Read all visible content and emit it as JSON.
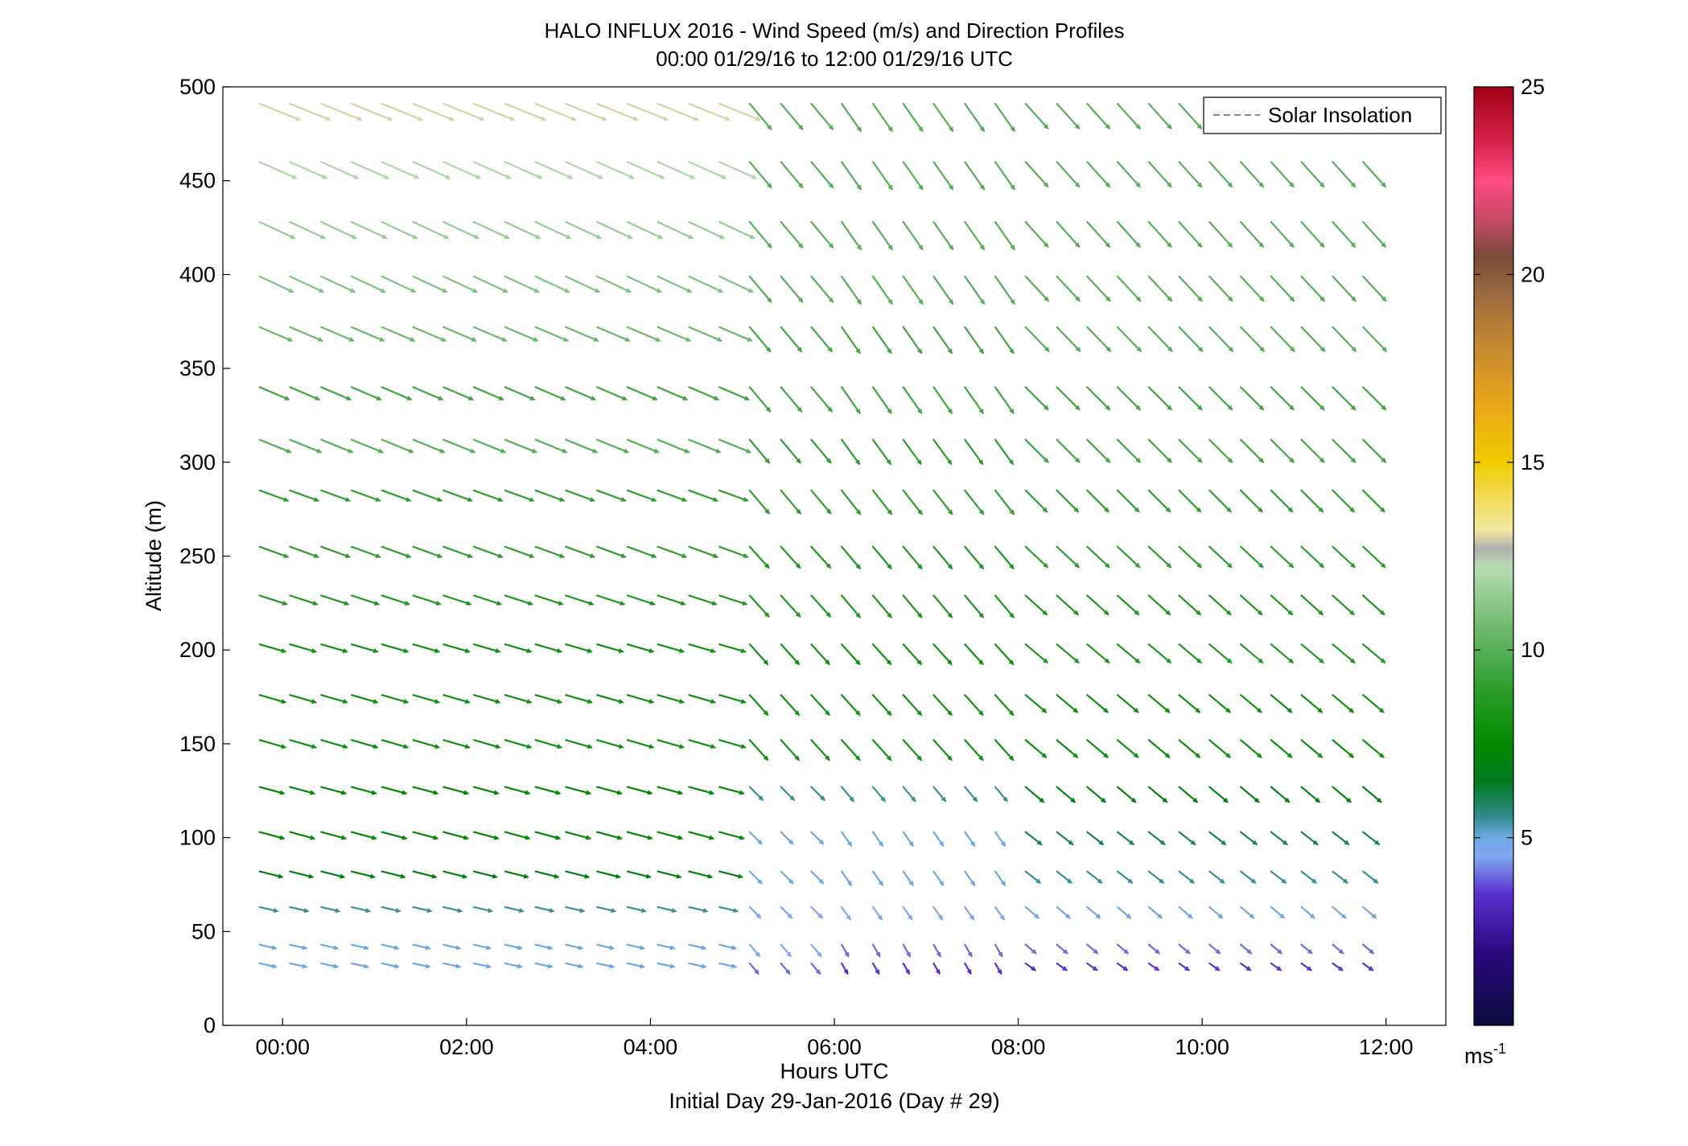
{
  "chart_data": {
    "type": "quiver",
    "title": "HALO INFLUX 2016 - Wind Speed (m/s) and Direction Profiles",
    "subtitle": "00:00 01/29/16 to 12:00 01/29/16  UTC",
    "xlabel": "Hours UTC",
    "xlabel2": "Initial Day 29-Jan-2016 (Day # 29)",
    "ylabel": "Altitude (m)",
    "xlim_hours": [
      -0.65,
      12.65
    ],
    "ylim": [
      0,
      500
    ],
    "x_ticks": [
      {
        "v": 0,
        "label": "00:00"
      },
      {
        "v": 2,
        "label": "02:00"
      },
      {
        "v": 4,
        "label": "04:00"
      },
      {
        "v": 6,
        "label": "06:00"
      },
      {
        "v": 8,
        "label": "08:00"
      },
      {
        "v": 10,
        "label": "10:00"
      },
      {
        "v": 12,
        "label": "12:00"
      }
    ],
    "y_ticks": [
      {
        "v": 0,
        "label": "0"
      },
      {
        "v": 50,
        "label": "50"
      },
      {
        "v": 100,
        "label": "100"
      },
      {
        "v": 150,
        "label": "150"
      },
      {
        "v": 200,
        "label": "200"
      },
      {
        "v": 250,
        "label": "250"
      },
      {
        "v": 300,
        "label": "300"
      },
      {
        "v": 350,
        "label": "350"
      },
      {
        "v": 400,
        "label": "400"
      },
      {
        "v": 450,
        "label": "450"
      },
      {
        "v": 500,
        "label": "500"
      }
    ],
    "legend": {
      "label": "Solar Insolation",
      "position": "top-right",
      "style": "dashed gray line"
    },
    "colorbar": {
      "range": [
        0,
        25
      ],
      "ticks": [
        {
          "v": 5,
          "label": "5"
        },
        {
          "v": 10,
          "label": "10"
        },
        {
          "v": 15,
          "label": "15"
        },
        {
          "v": 20,
          "label": "20"
        },
        {
          "v": 25,
          "label": "25"
        }
      ],
      "unit_base": "ms",
      "unit_exp": "-1",
      "stops": [
        [
          0,
          "#0a0a3c"
        ],
        [
          2,
          "#2a0a80"
        ],
        [
          3.5,
          "#5a30d0"
        ],
        [
          4.5,
          "#7fa8f0"
        ],
        [
          5,
          "#6fa8e0"
        ],
        [
          5.6,
          "#2e8a86"
        ],
        [
          6.5,
          "#007a1e"
        ],
        [
          7.5,
          "#008a00"
        ],
        [
          9,
          "#2e9e2e"
        ],
        [
          10.5,
          "#6ab86a"
        ],
        [
          12.2,
          "#b6dcb0"
        ],
        [
          12.7,
          "#b0b0b0"
        ],
        [
          13.2,
          "#f2e8a0"
        ],
        [
          14,
          "#f2dc5a"
        ],
        [
          15,
          "#f0cc00"
        ],
        [
          16.5,
          "#e8a818"
        ],
        [
          18,
          "#c88a30"
        ],
        [
          19.5,
          "#9a6a40"
        ],
        [
          20.5,
          "#7a4a38"
        ],
        [
          21.5,
          "#c84a68"
        ],
        [
          22.5,
          "#ff4a84"
        ],
        [
          23.5,
          "#d8244a"
        ],
        [
          25,
          "#a00016"
        ]
      ]
    },
    "arrow_scale_hours_per_mps": 0.036,
    "times_hours": [
      -0.25,
      0.08,
      0.42,
      0.75,
      1.08,
      1.42,
      1.75,
      2.08,
      2.42,
      2.75,
      3.08,
      3.42,
      3.75,
      4.08,
      4.42,
      4.75,
      5.08,
      5.42,
      5.75,
      6.08,
      6.42,
      6.75,
      7.08,
      7.42,
      7.75,
      8.08,
      8.42,
      8.75,
      9.08,
      9.42,
      9.75,
      10.08,
      10.42,
      10.75,
      11.08,
      11.42,
      11.75
    ],
    "altitudes_m": [
      33,
      43,
      63,
      82,
      103,
      127,
      152,
      176,
      203,
      229,
      255,
      285,
      312,
      340,
      372,
      399,
      428,
      460,
      491
    ],
    "columns": [
      {
        "from_hour": -0.3,
        "to_hour": 5.0,
        "speed_mps": [
          5.0,
          5.0,
          5.5,
          7.0,
          7.5,
          7.5,
          8.0,
          8.0,
          8.0,
          8.5,
          9.0,
          9.0,
          10.0,
          9.5,
          10.5,
          11.0,
          11.5,
          12.0,
          13.0
        ],
        "dir_to_deg": [
          102,
          103,
          103,
          104,
          105,
          105,
          106,
          106,
          106,
          108,
          110,
          110,
          112,
          113,
          113,
          115,
          115,
          114,
          112
        ]
      },
      {
        "from_hour": 5.0,
        "to_hour": 6.0,
        "speed_mps": [
          4.0,
          4.5,
          4.5,
          5.0,
          5.0,
          5.5,
          8.0,
          8.0,
          8.0,
          8.5,
          8.5,
          9.0,
          9.0,
          9.5,
          9.5,
          10.0,
          10.0,
          10.0,
          10.0
        ],
        "dir_to_deg": [
          140,
          140,
          135,
          135,
          135,
          135,
          138,
          138,
          138,
          138,
          138,
          140,
          140,
          140,
          140,
          140,
          140,
          140,
          140
        ]
      },
      {
        "from_hour": 6.0,
        "to_hour": 8.0,
        "speed_mps": [
          3.5,
          4.0,
          4.5,
          5.0,
          5.0,
          5.5,
          8.0,
          8.0,
          8.0,
          8.5,
          8.5,
          9.0,
          9.0,
          9.5,
          9.5,
          10.0,
          10.0,
          10.0,
          10.0
        ],
        "dir_to_deg": [
          150,
          150,
          145,
          145,
          145,
          140,
          138,
          138,
          138,
          140,
          140,
          142,
          144,
          145,
          145,
          145,
          145,
          145,
          145
        ]
      },
      {
        "from_hour": 8.0,
        "to_hour": 12.0,
        "speed_mps": [
          3.5,
          4.0,
          5.0,
          5.5,
          6.0,
          7.0,
          8.0,
          8.0,
          8.5,
          8.5,
          9.0,
          9.0,
          9.5,
          9.5,
          10.0,
          10.0,
          10.0,
          10.0,
          10.0
        ],
        "dir_to_deg": [
          125,
          130,
          130,
          128,
          128,
          130,
          130,
          130,
          130,
          132,
          133,
          135,
          135,
          135,
          136,
          137,
          138,
          138,
          138
        ]
      }
    ]
  }
}
